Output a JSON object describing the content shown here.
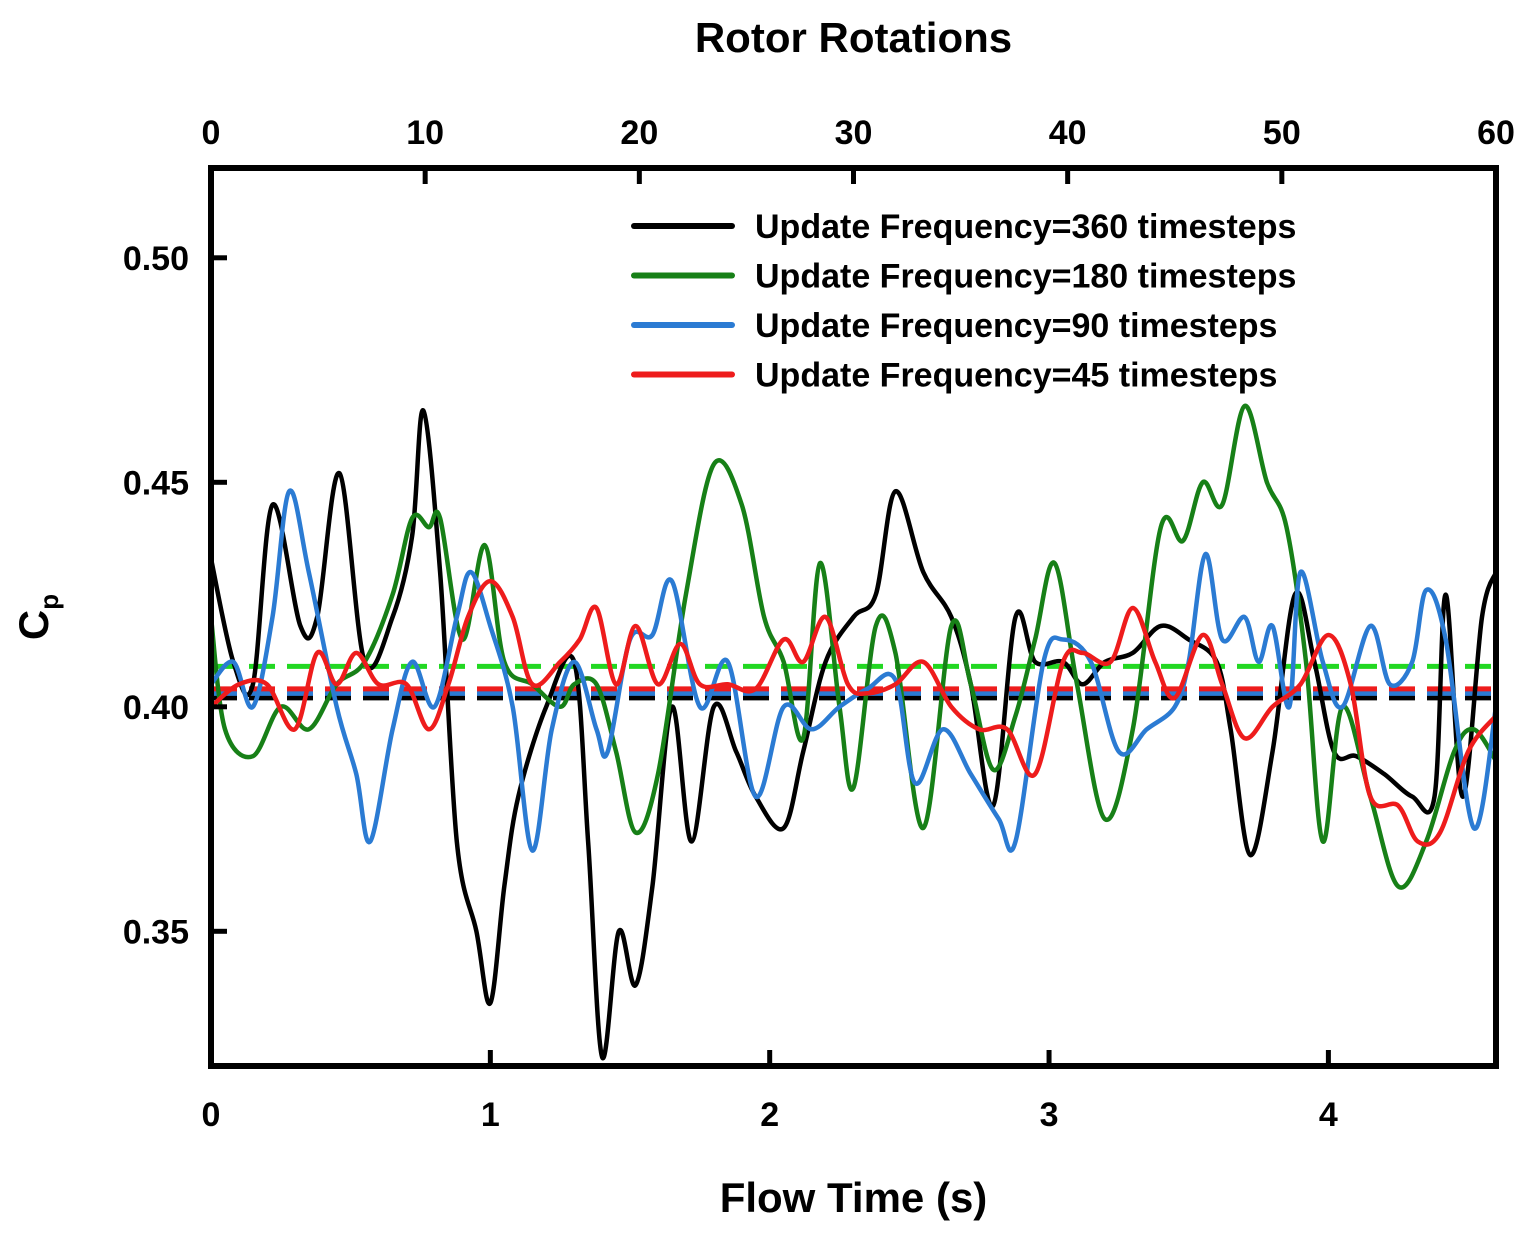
{
  "chart_data": {
    "type": "line",
    "title": "",
    "xlabel": "Flow Time (s)",
    "x2label": "Rotor Rotations",
    "ylabel_main": "C",
    "ylabel_sub": "p",
    "xlim": [
      0,
      4.6
    ],
    "x2lim": [
      0,
      60
    ],
    "ylim": [
      0.32,
      0.52
    ],
    "xticks": [
      "0",
      "1",
      "2",
      "3",
      "4"
    ],
    "x2ticks": [
      "0",
      "10",
      "20",
      "30",
      "40",
      "50",
      "60"
    ],
    "yticks": [
      "0.35",
      "0.40",
      "0.45",
      "0.50"
    ],
    "legend_position": "top-right",
    "series": [
      {
        "name": "Update Frequency=360 timesteps",
        "color": "#000000",
        "mean": 0.402,
        "points": [
          [
            0,
            0.433
          ],
          [
            0.08,
            0.41
          ],
          [
            0.15,
            0.405
          ],
          [
            0.22,
            0.445
          ],
          [
            0.32,
            0.418
          ],
          [
            0.38,
            0.42
          ],
          [
            0.46,
            0.452
          ],
          [
            0.55,
            0.41
          ],
          [
            0.65,
            0.42
          ],
          [
            0.72,
            0.438
          ],
          [
            0.76,
            0.466
          ],
          [
            0.82,
            0.43
          ],
          [
            0.88,
            0.37
          ],
          [
            0.95,
            0.35
          ],
          [
            1.0,
            0.334
          ],
          [
            1.05,
            0.36
          ],
          [
            1.1,
            0.38
          ],
          [
            1.2,
            0.4
          ],
          [
            1.3,
            0.41
          ],
          [
            1.35,
            0.37
          ],
          [
            1.4,
            0.322
          ],
          [
            1.46,
            0.35
          ],
          [
            1.52,
            0.338
          ],
          [
            1.58,
            0.36
          ],
          [
            1.65,
            0.4
          ],
          [
            1.72,
            0.37
          ],
          [
            1.8,
            0.4
          ],
          [
            1.88,
            0.39
          ],
          [
            1.95,
            0.38
          ],
          [
            2.05,
            0.373
          ],
          [
            2.12,
            0.39
          ],
          [
            2.2,
            0.41
          ],
          [
            2.3,
            0.42
          ],
          [
            2.38,
            0.425
          ],
          [
            2.45,
            0.448
          ],
          [
            2.55,
            0.43
          ],
          [
            2.65,
            0.42
          ],
          [
            2.72,
            0.405
          ],
          [
            2.8,
            0.378
          ],
          [
            2.88,
            0.42
          ],
          [
            2.95,
            0.41
          ],
          [
            3.05,
            0.41
          ],
          [
            3.12,
            0.405
          ],
          [
            3.2,
            0.41
          ],
          [
            3.3,
            0.412
          ],
          [
            3.4,
            0.418
          ],
          [
            3.5,
            0.415
          ],
          [
            3.6,
            0.41
          ],
          [
            3.65,
            0.395
          ],
          [
            3.72,
            0.367
          ],
          [
            3.8,
            0.39
          ],
          [
            3.88,
            0.425
          ],
          [
            3.95,
            0.41
          ],
          [
            4.02,
            0.39
          ],
          [
            4.1,
            0.389
          ],
          [
            4.2,
            0.385
          ],
          [
            4.3,
            0.38
          ],
          [
            4.38,
            0.38
          ],
          [
            4.42,
            0.425
          ],
          [
            4.48,
            0.38
          ],
          [
            4.55,
            0.42
          ],
          [
            4.6,
            0.43
          ]
        ]
      },
      {
        "name": "Update Frequency=180 timesteps",
        "color": "#178017",
        "mean": 0.409,
        "points": [
          [
            0,
            0.42
          ],
          [
            0.05,
            0.395
          ],
          [
            0.15,
            0.389
          ],
          [
            0.25,
            0.4
          ],
          [
            0.35,
            0.395
          ],
          [
            0.45,
            0.405
          ],
          [
            0.55,
            0.41
          ],
          [
            0.65,
            0.425
          ],
          [
            0.72,
            0.442
          ],
          [
            0.78,
            0.44
          ],
          [
            0.82,
            0.442
          ],
          [
            0.9,
            0.415
          ],
          [
            0.98,
            0.436
          ],
          [
            1.05,
            0.41
          ],
          [
            1.15,
            0.405
          ],
          [
            1.25,
            0.4
          ],
          [
            1.3,
            0.405
          ],
          [
            1.38,
            0.405
          ],
          [
            1.45,
            0.39
          ],
          [
            1.52,
            0.372
          ],
          [
            1.6,
            0.385
          ],
          [
            1.7,
            0.425
          ],
          [
            1.8,
            0.454
          ],
          [
            1.9,
            0.445
          ],
          [
            1.98,
            0.42
          ],
          [
            2.05,
            0.41
          ],
          [
            2.12,
            0.393
          ],
          [
            2.18,
            0.432
          ],
          [
            2.25,
            0.4
          ],
          [
            2.3,
            0.382
          ],
          [
            2.38,
            0.418
          ],
          [
            2.45,
            0.412
          ],
          [
            2.55,
            0.373
          ],
          [
            2.65,
            0.418
          ],
          [
            2.72,
            0.405
          ],
          [
            2.8,
            0.386
          ],
          [
            2.88,
            0.398
          ],
          [
            2.95,
            0.415
          ],
          [
            3.02,
            0.432
          ],
          [
            3.1,
            0.405
          ],
          [
            3.2,
            0.375
          ],
          [
            3.3,
            0.395
          ],
          [
            3.4,
            0.44
          ],
          [
            3.48,
            0.437
          ],
          [
            3.55,
            0.45
          ],
          [
            3.62,
            0.445
          ],
          [
            3.7,
            0.467
          ],
          [
            3.78,
            0.45
          ],
          [
            3.85,
            0.44
          ],
          [
            3.92,
            0.41
          ],
          [
            3.98,
            0.37
          ],
          [
            4.05,
            0.4
          ],
          [
            4.15,
            0.38
          ],
          [
            4.25,
            0.36
          ],
          [
            4.35,
            0.37
          ],
          [
            4.45,
            0.39
          ],
          [
            4.52,
            0.395
          ],
          [
            4.6,
            0.388
          ]
        ]
      },
      {
        "name": "Update Frequency=90 timesteps",
        "color": "#2b7bd3",
        "mean": 0.403,
        "points": [
          [
            0,
            0.405
          ],
          [
            0.08,
            0.41
          ],
          [
            0.15,
            0.4
          ],
          [
            0.22,
            0.42
          ],
          [
            0.28,
            0.448
          ],
          [
            0.35,
            0.43
          ],
          [
            0.45,
            0.4
          ],
          [
            0.52,
            0.385
          ],
          [
            0.57,
            0.37
          ],
          [
            0.65,
            0.395
          ],
          [
            0.72,
            0.41
          ],
          [
            0.8,
            0.4
          ],
          [
            0.88,
            0.42
          ],
          [
            0.93,
            0.43
          ],
          [
            1.0,
            0.418
          ],
          [
            1.08,
            0.4
          ],
          [
            1.15,
            0.368
          ],
          [
            1.22,
            0.395
          ],
          [
            1.3,
            0.41
          ],
          [
            1.38,
            0.395
          ],
          [
            1.42,
            0.39
          ],
          [
            1.5,
            0.415
          ],
          [
            1.58,
            0.416
          ],
          [
            1.65,
            0.428
          ],
          [
            1.75,
            0.4
          ],
          [
            1.85,
            0.41
          ],
          [
            1.95,
            0.38
          ],
          [
            2.05,
            0.4
          ],
          [
            2.15,
            0.395
          ],
          [
            2.25,
            0.4
          ],
          [
            2.35,
            0.404
          ],
          [
            2.45,
            0.406
          ],
          [
            2.52,
            0.383
          ],
          [
            2.62,
            0.395
          ],
          [
            2.72,
            0.385
          ],
          [
            2.82,
            0.375
          ],
          [
            2.88,
            0.37
          ],
          [
            2.98,
            0.41
          ],
          [
            3.05,
            0.415
          ],
          [
            3.15,
            0.41
          ],
          [
            3.25,
            0.39
          ],
          [
            3.35,
            0.395
          ],
          [
            3.45,
            0.4
          ],
          [
            3.5,
            0.41
          ],
          [
            3.56,
            0.434
          ],
          [
            3.62,
            0.415
          ],
          [
            3.7,
            0.42
          ],
          [
            3.75,
            0.41
          ],
          [
            3.8,
            0.418
          ],
          [
            3.86,
            0.4
          ],
          [
            3.9,
            0.43
          ],
          [
            3.98,
            0.41
          ],
          [
            4.05,
            0.4
          ],
          [
            4.15,
            0.418
          ],
          [
            4.22,
            0.405
          ],
          [
            4.3,
            0.41
          ],
          [
            4.35,
            0.426
          ],
          [
            4.42,
            0.415
          ],
          [
            4.52,
            0.373
          ],
          [
            4.6,
            0.4
          ]
        ]
      },
      {
        "name": "Update Frequency=45 timesteps",
        "color": "#ee1c1c",
        "mean": 0.404,
        "points": [
          [
            0,
            0.4
          ],
          [
            0.1,
            0.405
          ],
          [
            0.2,
            0.405
          ],
          [
            0.3,
            0.395
          ],
          [
            0.38,
            0.412
          ],
          [
            0.45,
            0.405
          ],
          [
            0.52,
            0.412
          ],
          [
            0.6,
            0.405
          ],
          [
            0.7,
            0.405
          ],
          [
            0.78,
            0.395
          ],
          [
            0.85,
            0.405
          ],
          [
            0.92,
            0.42
          ],
          [
            1.0,
            0.428
          ],
          [
            1.08,
            0.42
          ],
          [
            1.15,
            0.405
          ],
          [
            1.25,
            0.41
          ],
          [
            1.32,
            0.415
          ],
          [
            1.38,
            0.422
          ],
          [
            1.45,
            0.405
          ],
          [
            1.52,
            0.418
          ],
          [
            1.6,
            0.405
          ],
          [
            1.68,
            0.414
          ],
          [
            1.75,
            0.405
          ],
          [
            1.85,
            0.405
          ],
          [
            1.95,
            0.404
          ],
          [
            2.05,
            0.415
          ],
          [
            2.12,
            0.41
          ],
          [
            2.2,
            0.42
          ],
          [
            2.28,
            0.405
          ],
          [
            2.35,
            0.403
          ],
          [
            2.45,
            0.405
          ],
          [
            2.55,
            0.41
          ],
          [
            2.65,
            0.4
          ],
          [
            2.75,
            0.395
          ],
          [
            2.85,
            0.395
          ],
          [
            2.95,
            0.385
          ],
          [
            3.05,
            0.41
          ],
          [
            3.12,
            0.412
          ],
          [
            3.22,
            0.41
          ],
          [
            3.3,
            0.422
          ],
          [
            3.38,
            0.41
          ],
          [
            3.45,
            0.402
          ],
          [
            3.55,
            0.416
          ],
          [
            3.62,
            0.405
          ],
          [
            3.7,
            0.393
          ],
          [
            3.8,
            0.4
          ],
          [
            3.9,
            0.405
          ],
          [
            4.0,
            0.416
          ],
          [
            4.08,
            0.405
          ],
          [
            4.15,
            0.38
          ],
          [
            4.25,
            0.378
          ],
          [
            4.32,
            0.37
          ],
          [
            4.4,
            0.372
          ],
          [
            4.5,
            0.39
          ],
          [
            4.6,
            0.398
          ]
        ]
      }
    ]
  }
}
